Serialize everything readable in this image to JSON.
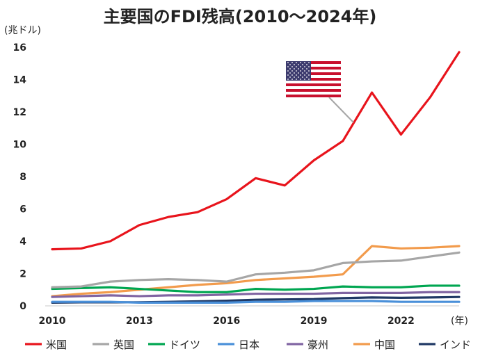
{
  "chart_data": {
    "type": "line",
    "title": "主要国のFDI残高(2010〜2024年)",
    "ylabel": "(兆ドル)",
    "xlabel": "(年)",
    "ylim": [
      0,
      16
    ],
    "xlim": [
      2010,
      2024
    ],
    "yticks": [
      0,
      2,
      4,
      6,
      8,
      10,
      12,
      14,
      16
    ],
    "xticks": [
      2010,
      2013,
      2016,
      2019,
      2022
    ],
    "x": [
      2010,
      2011,
      2012,
      2013,
      2014,
      2015,
      2016,
      2017,
      2018,
      2019,
      2020,
      2021,
      2022,
      2023,
      2024
    ],
    "legend_position": "bottom",
    "grid": false,
    "series": [
      {
        "name": "米国",
        "color": "#e8141c",
        "values": [
          3.5,
          3.55,
          4.0,
          5.0,
          5.5,
          5.8,
          6.6,
          7.9,
          7.45,
          9.0,
          10.2,
          13.2,
          10.6,
          12.9,
          15.7
        ]
      },
      {
        "name": "英国",
        "color": "#a6a6a6",
        "values": [
          1.15,
          1.2,
          1.5,
          1.6,
          1.65,
          1.6,
          1.5,
          1.95,
          2.05,
          2.2,
          2.65,
          2.75,
          2.8,
          3.05,
          3.3
        ]
      },
      {
        "name": "ドイツ",
        "color": "#00a651",
        "values": [
          1.05,
          1.1,
          1.15,
          1.05,
          0.95,
          0.85,
          0.85,
          1.05,
          1.0,
          1.05,
          1.2,
          1.15,
          1.15,
          1.25,
          1.25
        ]
      },
      {
        "name": "日本",
        "color": "#4a90d9",
        "values": [
          0.25,
          0.25,
          0.25,
          0.2,
          0.2,
          0.2,
          0.2,
          0.25,
          0.25,
          0.3,
          0.3,
          0.3,
          0.25,
          0.25,
          0.25
        ]
      },
      {
        "name": "豪州",
        "color": "#8064a2",
        "values": [
          0.55,
          0.6,
          0.65,
          0.6,
          0.65,
          0.65,
          0.7,
          0.75,
          0.75,
          0.75,
          0.8,
          0.8,
          0.8,
          0.85,
          0.85
        ]
      },
      {
        "name": "中国",
        "color": "#f29b4c",
        "values": [
          0.6,
          0.75,
          0.85,
          1.0,
          1.15,
          1.3,
          1.4,
          1.6,
          1.7,
          1.8,
          1.95,
          3.7,
          3.55,
          3.6,
          3.7
        ]
      },
      {
        "name": "インド",
        "color": "#1f3864",
        "values": [
          0.2,
          0.22,
          0.22,
          0.22,
          0.25,
          0.28,
          0.32,
          0.38,
          0.4,
          0.42,
          0.48,
          0.52,
          0.5,
          0.52,
          0.55
        ]
      }
    ],
    "annotation": {
      "label_icon": "us-flag-icon",
      "points_to_series": "米国",
      "points_to_x": 2020
    }
  }
}
